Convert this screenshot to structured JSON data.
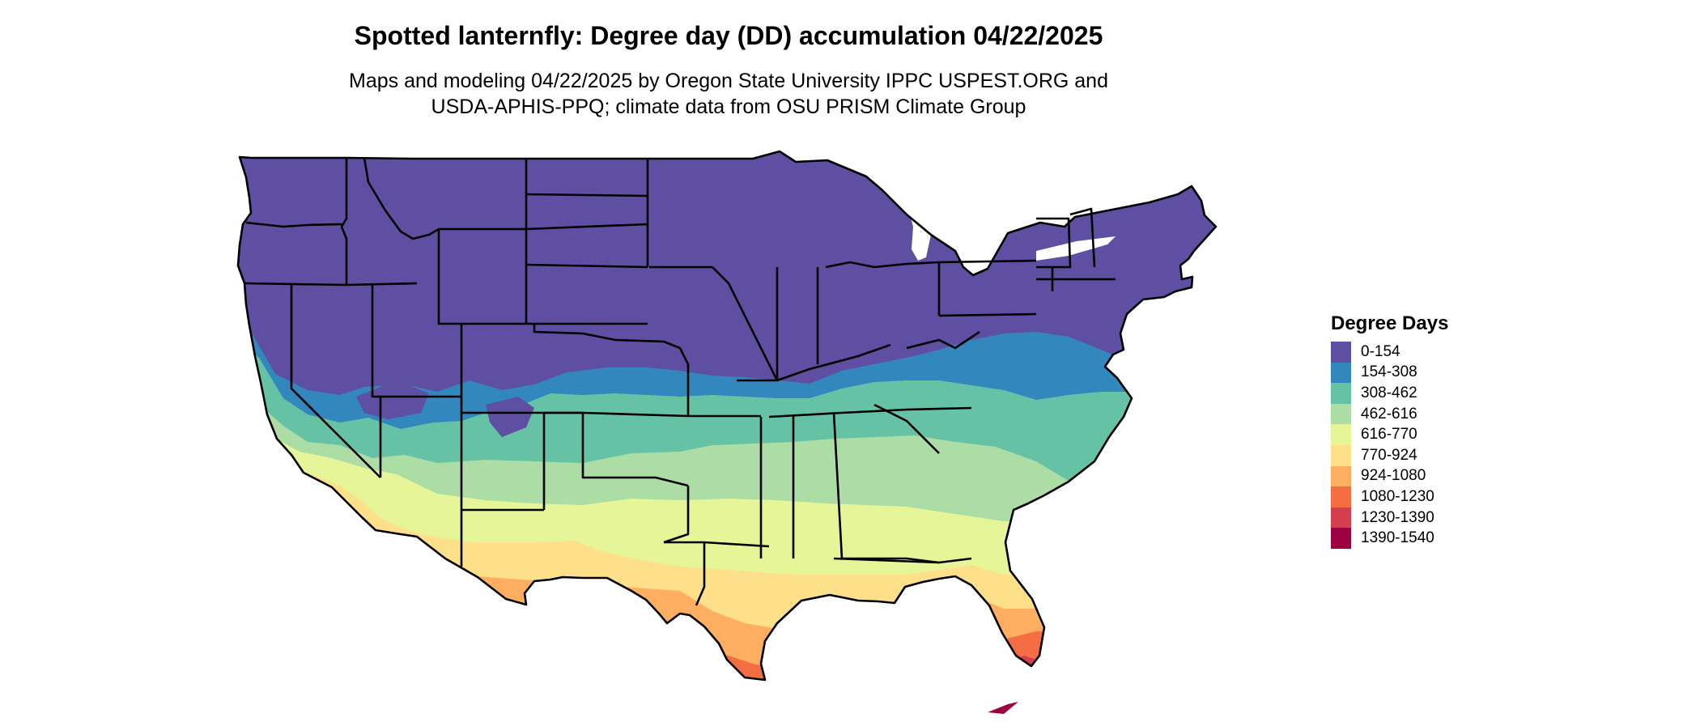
{
  "map": {
    "title": "Spotted lanternfly: Degree day (DD) accumulation 04/22/2025",
    "subtitle_lines": [
      "Maps and modeling 04/22/2025 by Oregon State University IPPC USPEST.ORG and",
      "USDA-APHIS-PPQ; climate data from OSU PRISM Climate Group"
    ],
    "region": "Contiguous United States",
    "state_boundaries_color": "#000000",
    "legend": {
      "title": "Degree Days",
      "classes": [
        {
          "label": "0-154",
          "color": "#5E4FA2"
        },
        {
          "label": "154-308",
          "color": "#3288BD"
        },
        {
          "label": "308-462",
          "color": "#66C2A5"
        },
        {
          "label": "462-616",
          "color": "#ABDDA4"
        },
        {
          "label": "616-770",
          "color": "#E6F598"
        },
        {
          "label": "770-924",
          "color": "#FEE08B"
        },
        {
          "label": "924-1080",
          "color": "#FDAE61"
        },
        {
          "label": "1080-1230",
          "color": "#F46D43"
        },
        {
          "label": "1230-1390",
          "color": "#D53E4F"
        },
        {
          "label": "1390-1540",
          "color": "#9E0142"
        }
      ]
    }
  }
}
